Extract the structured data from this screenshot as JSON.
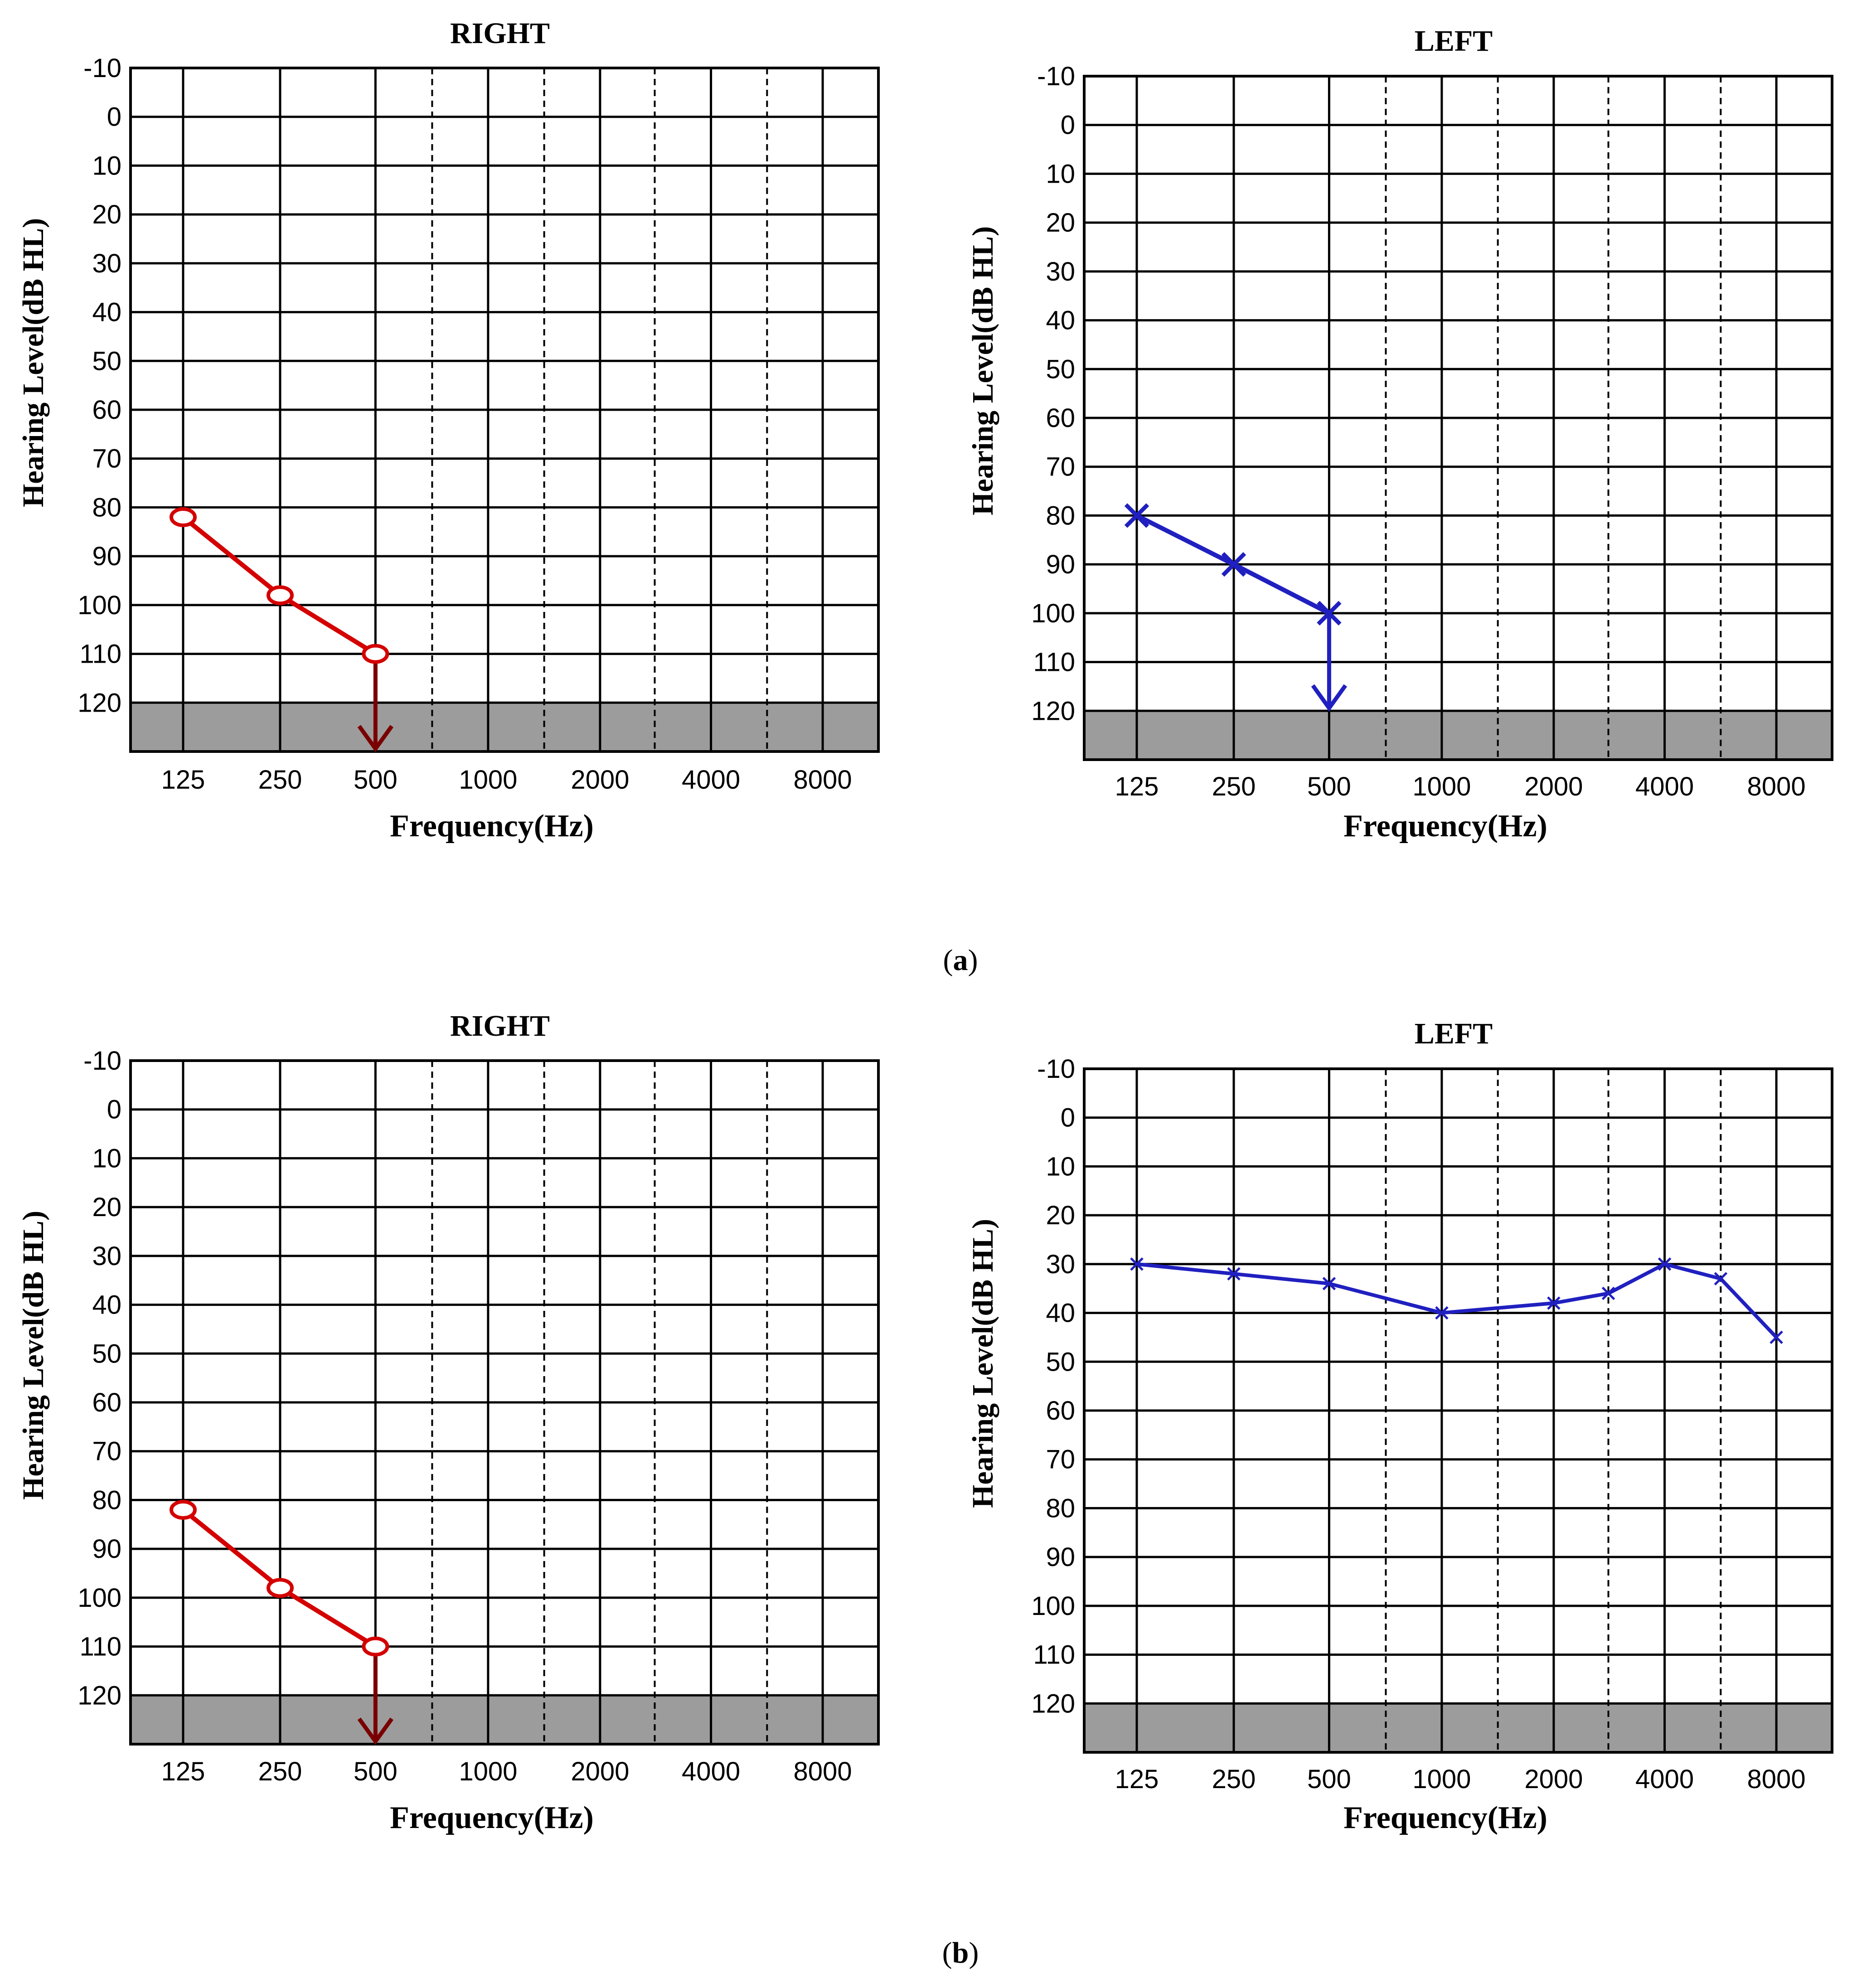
{
  "colors": {
    "right_line": "#d40000",
    "right_arrow": "#7a0000",
    "left_line": "#2020c0",
    "grid": "#000000",
    "shade": "#9c9c9c"
  },
  "captions": [
    {
      "open": "(",
      "letter": "a",
      "close": ")"
    },
    {
      "open": "(",
      "letter": "b",
      "close": ")"
    }
  ],
  "chart_data": [
    {
      "id": "a-right",
      "type": "line",
      "title": "RIGHT",
      "xlabel": "Frequency(Hz)",
      "ylabel": "Hearing Level(dB HL)",
      "x_categories": [
        "125",
        "250",
        "500",
        "1000",
        "2000",
        "4000",
        "8000"
      ],
      "y_ticks": [
        "-10",
        "0",
        "10",
        "20",
        "30",
        "40",
        "50",
        "60",
        "70",
        "80",
        "90",
        "100",
        "110",
        "120"
      ],
      "ylim": [
        -10,
        130
      ],
      "y_inverted": true,
      "shaded_range": [
        120,
        130
      ],
      "marker": "circle",
      "series": [
        {
          "name": "RIGHT",
          "x": [
            "125",
            "250",
            "500"
          ],
          "y": [
            82,
            98,
            110
          ]
        }
      ],
      "no_response_arrow": {
        "x": "500",
        "from": 110,
        "to": 130
      }
    },
    {
      "id": "a-left",
      "type": "line",
      "title": "LEFT",
      "xlabel": "Frequency(Hz)",
      "ylabel": "Hearing Level(dB HL)",
      "x_categories": [
        "125",
        "250",
        "500",
        "1000",
        "2000",
        "4000",
        "8000"
      ],
      "y_ticks": [
        "-10",
        "0",
        "10",
        "20",
        "30",
        "40",
        "50",
        "60",
        "70",
        "80",
        "90",
        "100",
        "110",
        "120"
      ],
      "ylim": [
        -10,
        130
      ],
      "y_inverted": true,
      "shaded_range": [
        120,
        130
      ],
      "marker": "x",
      "series": [
        {
          "name": "LEFT",
          "x": [
            "125",
            "250",
            "500"
          ],
          "y": [
            80,
            90,
            100
          ]
        }
      ],
      "no_response_arrow": {
        "x": "500",
        "from": 100,
        "to": 120
      }
    },
    {
      "id": "b-right",
      "type": "line",
      "title": "RIGHT",
      "xlabel": "Frequency(Hz)",
      "ylabel": "Hearing Level(dB HL)",
      "x_categories": [
        "125",
        "250",
        "500",
        "1000",
        "2000",
        "4000",
        "8000"
      ],
      "y_ticks": [
        "-10",
        "0",
        "10",
        "20",
        "30",
        "40",
        "50",
        "60",
        "70",
        "80",
        "90",
        "100",
        "110",
        "120"
      ],
      "ylim": [
        -10,
        130
      ],
      "y_inverted": true,
      "shaded_range": [
        120,
        130
      ],
      "marker": "circle",
      "series": [
        {
          "name": "RIGHT",
          "x": [
            "125",
            "250",
            "500"
          ],
          "y": [
            82,
            98,
            110
          ]
        }
      ],
      "no_response_arrow": {
        "x": "500",
        "from": 110,
        "to": 130
      }
    },
    {
      "id": "b-left",
      "type": "line",
      "title": "LEFT",
      "xlabel": "Frequency(Hz)",
      "ylabel": "Hearing Level(dB HL)",
      "x_categories": [
        "125",
        "250",
        "500",
        "1000",
        "2000",
        "4000",
        "8000"
      ],
      "y_ticks": [
        "-10",
        "0",
        "10",
        "20",
        "30",
        "40",
        "50",
        "60",
        "70",
        "80",
        "90",
        "100",
        "110",
        "120"
      ],
      "ylim": [
        -10,
        130
      ],
      "y_inverted": true,
      "shaded_range": [
        120,
        130
      ],
      "marker": "x-small",
      "series": [
        {
          "name": "LEFT",
          "x": [
            "125",
            "250",
            "500",
            "1000",
            "2000",
            "3000",
            "4000",
            "6000",
            "8000"
          ],
          "y": [
            30,
            32,
            34,
            40,
            38,
            36,
            30,
            33,
            45
          ]
        }
      ],
      "no_response_arrow": null
    }
  ]
}
